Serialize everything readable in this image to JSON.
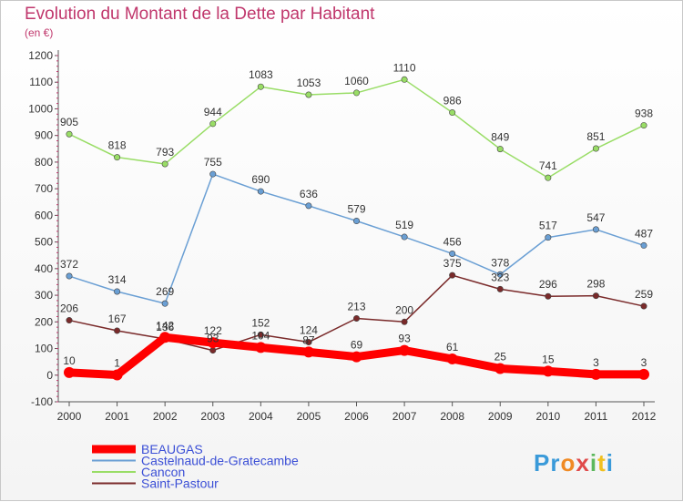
{
  "chart_data": {
    "type": "line",
    "title": "Evolution du Montant de la Dette par Habitant",
    "subtitle": "(en €)",
    "x": [
      "2000",
      "2001",
      "2002",
      "2003",
      "2004",
      "2005",
      "2006",
      "2007",
      "2008",
      "2009",
      "2010",
      "2011",
      "2012"
    ],
    "ylim": [
      -100,
      1200
    ],
    "yticks": [
      -100,
      0,
      100,
      200,
      300,
      400,
      500,
      600,
      700,
      800,
      900,
      1000,
      1100,
      1200
    ],
    "grid": false,
    "legend_position": "bottom-left",
    "series": [
      {
        "name": "BEAUGAS",
        "color": "#ff0000",
        "values": [
          10,
          1,
          142,
          122,
          104,
          87,
          69,
          93,
          61,
          25,
          15,
          3,
          3
        ]
      },
      {
        "name": "Castelnaud-de-Gratecambe",
        "color": "#6a9fd4",
        "values": [
          372,
          314,
          269,
          755,
          690,
          636,
          579,
          519,
          456,
          378,
          517,
          547,
          487
        ]
      },
      {
        "name": "Cancon",
        "color": "#99dd66",
        "values": [
          905,
          818,
          793,
          944,
          1083,
          1053,
          1060,
          1110,
          986,
          849,
          741,
          851,
          938
        ]
      },
      {
        "name": "Saint-Pastour",
        "color": "#7a2a2a",
        "values": [
          206,
          167,
          136,
          93,
          152,
          124,
          213,
          200,
          375,
          323,
          296,
          298,
          259
        ]
      }
    ],
    "data_labels": {
      "BEAUGAS": [
        "10",
        "1",
        "142",
        "122",
        "104",
        "87",
        "69",
        "93",
        "61",
        "25",
        "15",
        "3",
        "3"
      ],
      "Castelnaud-de-Gratecambe": [
        "372",
        "314",
        "269",
        "755",
        "690",
        "636",
        "579",
        "519",
        "456",
        "378",
        "517",
        "547",
        "487"
      ],
      "Cancon": [
        "905",
        "818",
        "793",
        "944",
        "1083",
        "1053",
        "1060",
        "1110",
        "986",
        "849",
        "741",
        "851",
        "938"
      ],
      "Saint-Pastour": [
        "206",
        "167",
        "136",
        "93",
        "152",
        "124",
        "213",
        "200",
        "375",
        "323",
        "296",
        "298",
        "259"
      ]
    }
  },
  "logo": {
    "letters": [
      "Pr",
      "o",
      "x",
      "i",
      "t",
      "i"
    ]
  }
}
